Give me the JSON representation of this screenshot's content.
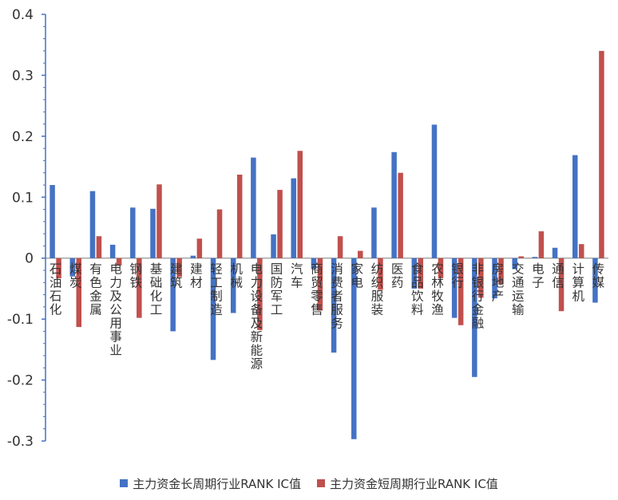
{
  "chart_data": {
    "type": "bar",
    "title": "",
    "xlabel": "",
    "ylabel": "",
    "ylim": [
      -0.3,
      0.4
    ],
    "yticks": [
      "0.4",
      "0.3",
      "0.2",
      "0.1",
      "0",
      "-0.1",
      "-0.2",
      "-0.3"
    ],
    "ytick_values": [
      0.4,
      0.3,
      0.2,
      0.1,
      0,
      -0.1,
      -0.2,
      -0.3
    ],
    "legend_position": "bottom",
    "grid": false,
    "categories": [
      "石油石化",
      "煤炭",
      "有色金属",
      "电力及公用事业",
      "钢铁",
      "基础化工",
      "建筑",
      "建材",
      "轻工制造",
      "机械",
      "电力设备及新能源",
      "国防军工",
      "汽车",
      "商贸零售",
      "消费者服务",
      "家电",
      "纺织服装",
      "医药",
      "食品饮料",
      "农林牧渔",
      "银行",
      "非银行金融",
      "房地产",
      "交通运输",
      "电子",
      "通信",
      "计算机",
      "传媒"
    ],
    "series": [
      {
        "name": "主力资金长周期行业RANK IC值",
        "color": "#4472C4",
        "values": [
          0.12,
          -0.03,
          0.11,
          0.022,
          0.083,
          0.081,
          -0.12,
          0.004,
          -0.167,
          -0.09,
          0.165,
          0.039,
          0.131,
          -0.018,
          -0.155,
          -0.297,
          0.083,
          0.174,
          -0.05,
          0.219,
          -0.098,
          -0.195,
          -0.066,
          -0.018,
          0.002,
          0.017,
          0.169,
          -0.073
        ]
      },
      {
        "name": "主力资金短周期行业RANK IC值",
        "color": "#C0504D",
        "values": [
          -0.033,
          -0.113,
          0.036,
          -0.012,
          -0.098,
          0.121,
          -0.031,
          0.032,
          0.08,
          0.137,
          -0.118,
          0.112,
          0.176,
          -0.086,
          0.036,
          0.012,
          -0.052,
          0.14,
          -0.05,
          -0.033,
          -0.11,
          -0.065,
          -0.043,
          0.003,
          0.044,
          -0.087,
          0.023,
          0.34
        ]
      }
    ]
  }
}
